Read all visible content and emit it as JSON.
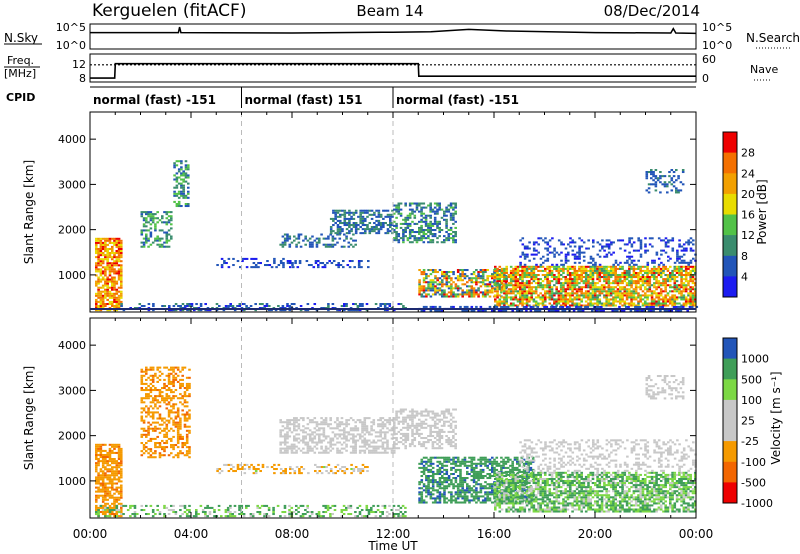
{
  "header": {
    "station": "Kerguelen (fitACF)",
    "beam": "Beam 14",
    "date": "08/Dec/2014"
  },
  "top_panels": {
    "nsky_label": "N.Sky",
    "nsearch_label": "N.Search",
    "nsky_ticks": [
      "10^5",
      "10^0"
    ],
    "freq_label_1": "Freq.",
    "freq_label_2": "[MHz]",
    "freq_ticks": [
      "12",
      "8"
    ],
    "nave_label": "Nave",
    "nave_ticks": [
      "60",
      "0"
    ],
    "cpid_label": "CPID",
    "cpid_segments": [
      {
        "label": "normal (fast) -151",
        "start": 0,
        "end": 6
      },
      {
        "label": "normal (fast) 151",
        "start": 6,
        "end": 12
      },
      {
        "label": "normal (fast) -151",
        "start": 12,
        "end": 24
      }
    ]
  },
  "colors": {
    "power": [
      "#1c1cf0",
      "#2255b8",
      "#3a8c6e",
      "#52c248",
      "#e8dc00",
      "#f2a000",
      "#f47000",
      "#ee0000"
    ],
    "velocity": [
      "#ee0000",
      "#f36600",
      "#f59a00",
      "#c8c8c8",
      "#c8c8c8",
      "#7cd844",
      "#3f9e58",
      "#2255b8"
    ]
  },
  "chart_data": [
    {
      "type": "line",
      "title": "N.Sky / N.Search",
      "x_hours": [
        0,
        3.5,
        3.55,
        3.6,
        8,
        12,
        13.5,
        15,
        16.5,
        20,
        23,
        23.1,
        23.2,
        24
      ],
      "nsky_log10": [
        3.6,
        3.6,
        5.0,
        3.6,
        3.5,
        3.7,
        3.8,
        4.4,
        4.0,
        3.6,
        3.5,
        4.6,
        3.5,
        3.4
      ],
      "ylim_log10": [
        0,
        5
      ]
    },
    {
      "type": "line",
      "title": "Freq / Nave",
      "x_hours": [
        0,
        0.98,
        1.0,
        13.0,
        13.02,
        24
      ],
      "freq_mhz": [
        8.4,
        8.4,
        11.4,
        11.4,
        8.8,
        8.8
      ],
      "nave_x": [
        0,
        24
      ],
      "nave": [
        38,
        38
      ],
      "freq_ylim": [
        8,
        13
      ],
      "nave_ylim": [
        0,
        60
      ]
    },
    {
      "type": "heatmap",
      "ylabel": "Slant Range [km]",
      "xlabel": "Time UT",
      "x_ticks": [
        "00:00",
        "04:00",
        "08:00",
        "12:00",
        "16:00",
        "20:00",
        "00:00"
      ],
      "x_range_hours": [
        0,
        24
      ],
      "y_ticks": [
        1000,
        2000,
        3000,
        4000
      ],
      "y_range_km": [
        180,
        4600
      ],
      "colorbar_label": "Power [dB]",
      "colorbar_ticks": [
        "28",
        "24",
        "20",
        "16",
        "12",
        "8",
        "4"
      ],
      "colorbar_range": [
        0,
        32
      ],
      "scatter_regions": [
        {
          "t": [
            0.2,
            1.2
          ],
          "r": [
            200,
            1800
          ],
          "v": [
            16,
            30
          ],
          "d": 0.75
        },
        {
          "t": [
            2.0,
            3.2
          ],
          "r": [
            1600,
            2400
          ],
          "v": [
            6,
            16
          ],
          "d": 0.45
        },
        {
          "t": [
            3.3,
            3.9
          ],
          "r": [
            2500,
            3500
          ],
          "v": [
            6,
            16
          ],
          "d": 0.5
        },
        {
          "t": [
            1.2,
            12.5
          ],
          "r": [
            200,
            380
          ],
          "v": [
            2,
            10
          ],
          "d": 0.35
        },
        {
          "t": [
            5.0,
            8.0
          ],
          "r": [
            1150,
            1350
          ],
          "v": [
            2,
            8
          ],
          "d": 0.3
        },
        {
          "t": [
            8.0,
            11.0
          ],
          "r": [
            1150,
            1300
          ],
          "v": [
            2,
            8
          ],
          "d": 0.35
        },
        {
          "t": [
            7.5,
            10.5
          ],
          "r": [
            1600,
            1900
          ],
          "v": [
            4,
            10
          ],
          "d": 0.4
        },
        {
          "t": [
            9.5,
            12.0
          ],
          "r": [
            1900,
            2400
          ],
          "v": [
            4,
            12
          ],
          "d": 0.55
        },
        {
          "t": [
            12.0,
            14.5
          ],
          "r": [
            1700,
            2600
          ],
          "v": [
            4,
            14
          ],
          "d": 0.5
        },
        {
          "t": [
            13.0,
            16.5
          ],
          "r": [
            500,
            1100
          ],
          "v": [
            4,
            30
          ],
          "d": 0.6
        },
        {
          "t": [
            16.0,
            24.0
          ],
          "r": [
            300,
            1200
          ],
          "v": [
            10,
            30
          ],
          "d": 0.75
        },
        {
          "t": [
            13.0,
            24.0
          ],
          "r": [
            180,
            300
          ],
          "v": [
            2,
            8
          ],
          "d": 0.55
        },
        {
          "t": [
            17.0,
            24.0
          ],
          "r": [
            1200,
            1800
          ],
          "v": [
            2,
            8
          ],
          "d": 0.25
        },
        {
          "t": [
            22.0,
            23.5
          ],
          "r": [
            2800,
            3300
          ],
          "v": [
            4,
            10
          ],
          "d": 0.35
        }
      ]
    },
    {
      "type": "heatmap",
      "ylabel": "Slant Range [km]",
      "xlabel": "Time UT",
      "x_ticks": [
        "00:00",
        "04:00",
        "08:00",
        "12:00",
        "16:00",
        "20:00",
        "00:00"
      ],
      "x_range_hours": [
        0,
        24
      ],
      "y_ticks": [
        1000,
        2000,
        3000,
        4000
      ],
      "y_range_km": [
        180,
        4600
      ],
      "colorbar_label": "Velocity [m s⁻¹]",
      "colorbar_ticks": [
        "1000",
        "500",
        "100",
        "25",
        "-25",
        "-100",
        "-500",
        "-1000"
      ],
      "colorbar_range": [
        -1200,
        1200
      ],
      "scatter_regions": [
        {
          "t": [
            0.2,
            1.2
          ],
          "r": [
            200,
            1800
          ],
          "v": [
            -600,
            -100
          ],
          "d": 0.7
        },
        {
          "t": [
            2.0,
            3.9
          ],
          "r": [
            1500,
            3500
          ],
          "v": [
            -600,
            -100
          ],
          "d": 0.45
        },
        {
          "t": [
            0.2,
            12.5
          ],
          "r": [
            200,
            450
          ],
          "v": [
            -20,
            200
          ],
          "d": 0.35
        },
        {
          "t": [
            5.0,
            11.0
          ],
          "r": [
            1150,
            1350
          ],
          "v": [
            -300,
            30
          ],
          "d": 0.3
        },
        {
          "t": [
            7.5,
            12.0
          ],
          "r": [
            1600,
            2400
          ],
          "v": [
            -20,
            20
          ],
          "d": 0.5
        },
        {
          "t": [
            12.0,
            14.5
          ],
          "r": [
            1700,
            2600
          ],
          "v": [
            -20,
            20
          ],
          "d": 0.45
        },
        {
          "t": [
            13.0,
            17.5
          ],
          "r": [
            500,
            1500
          ],
          "v": [
            100,
            600
          ],
          "d": 0.6
        },
        {
          "t": [
            16.0,
            24.0
          ],
          "r": [
            300,
            1200
          ],
          "v": [
            -20,
            200
          ],
          "d": 0.7
        },
        {
          "t": [
            17.0,
            24.0
          ],
          "r": [
            1200,
            1900
          ],
          "v": [
            -20,
            20
          ],
          "d": 0.3
        },
        {
          "t": [
            22.0,
            23.5
          ],
          "r": [
            2800,
            3300
          ],
          "v": [
            -20,
            20
          ],
          "d": 0.35
        }
      ]
    }
  ]
}
